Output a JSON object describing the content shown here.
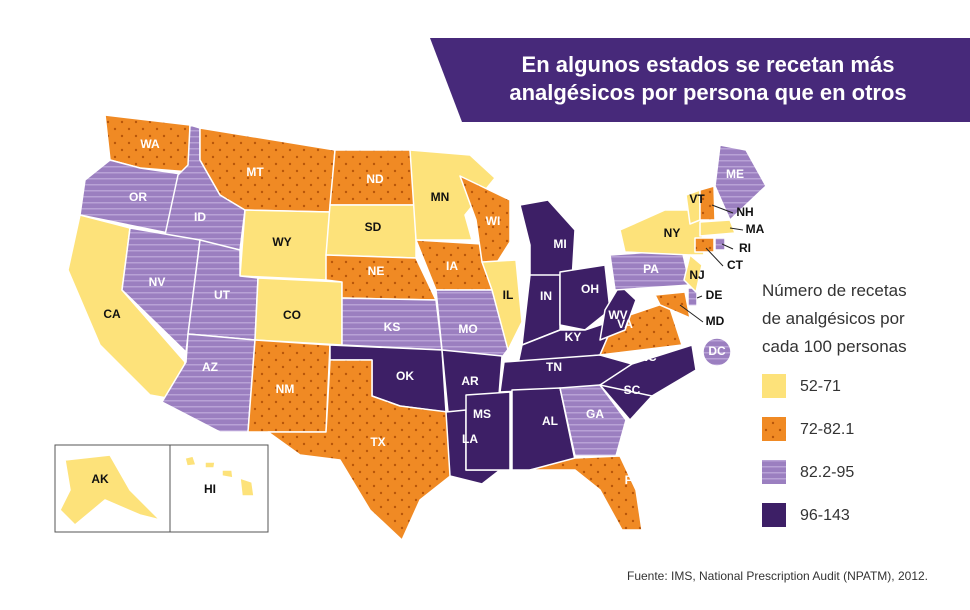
{
  "title_lines": [
    "En algunos estados se recetan más",
    "analgésicos por persona que en otros"
  ],
  "legend": {
    "title_lines": [
      "Número de recetas",
      "de analgésicos por",
      "cada 100 personas"
    ],
    "items": [
      {
        "label": "52-71",
        "color": "#fde27a",
        "pattern": "none"
      },
      {
        "label": "72-82.1",
        "color": "#f08a24",
        "pattern": "dots"
      },
      {
        "label": "82.2-95",
        "color": "#9b7fc0",
        "pattern": "stripes"
      },
      {
        "label": "96-143",
        "color": "#3d1f66",
        "pattern": "none"
      }
    ]
  },
  "states": [
    {
      "label": "WA",
      "color": "#f08a24"
    },
    {
      "label": "OR",
      "color": "#9b7fc0"
    },
    {
      "label": "CA",
      "color": "#fde27a"
    },
    {
      "label": "ID",
      "color": "#9b7fc0"
    },
    {
      "label": "NV",
      "color": "#9b7fc0"
    },
    {
      "label": "MT",
      "color": "#f08a24"
    },
    {
      "label": "WY",
      "color": "#fde27a"
    },
    {
      "label": "UT",
      "color": "#9b7fc0"
    },
    {
      "label": "AZ",
      "color": "#9b7fc0"
    },
    {
      "label": "CO",
      "color": "#fde27a"
    },
    {
      "label": "NM",
      "color": "#f08a24"
    },
    {
      "label": "ND",
      "color": "#f08a24"
    },
    {
      "label": "SD",
      "color": "#fde27a"
    },
    {
      "label": "NE",
      "color": "#f08a24"
    },
    {
      "label": "KS",
      "color": "#9b7fc0"
    },
    {
      "label": "OK",
      "color": "#3d1f66"
    },
    {
      "label": "TX",
      "color": "#f08a24"
    },
    {
      "label": "MN",
      "color": "#fde27a"
    },
    {
      "label": "IA",
      "color": "#f08a24"
    },
    {
      "label": "MO",
      "color": "#9b7fc0"
    },
    {
      "label": "AR",
      "color": "#3d1f66"
    },
    {
      "label": "LA",
      "color": "#3d1f66"
    },
    {
      "label": "WI",
      "color": "#f08a24"
    },
    {
      "label": "IL",
      "color": "#fde27a"
    },
    {
      "label": "MI",
      "color": "#3d1f66"
    },
    {
      "label": "IN",
      "color": "#3d1f66"
    },
    {
      "label": "OH",
      "color": "#3d1f66"
    },
    {
      "label": "KY",
      "color": "#3d1f66"
    },
    {
      "label": "TN",
      "color": "#3d1f66"
    },
    {
      "label": "MS",
      "color": "#3d1f66"
    },
    {
      "label": "AL",
      "color": "#3d1f66"
    },
    {
      "label": "GA",
      "color": "#9b7fc0"
    },
    {
      "label": "FL",
      "color": "#f08a24"
    },
    {
      "label": "SC",
      "color": "#3d1f66"
    },
    {
      "label": "NC",
      "color": "#3d1f66"
    },
    {
      "label": "VA",
      "color": "#f08a24"
    },
    {
      "label": "WV",
      "color": "#3d1f66"
    },
    {
      "label": "MD",
      "color": "#f08a24"
    },
    {
      "label": "DE",
      "color": "#9b7fc0"
    },
    {
      "label": "PA",
      "color": "#9b7fc0"
    },
    {
      "label": "NY",
      "color": "#fde27a"
    },
    {
      "label": "NJ",
      "color": "#fde27a"
    },
    {
      "label": "VT",
      "color": "#fde27a"
    },
    {
      "label": "NH",
      "color": "#f08a24"
    },
    {
      "label": "ME",
      "color": "#9b7fc0"
    },
    {
      "label": "MA",
      "color": "#fde27a"
    },
    {
      "label": "CT",
      "color": "#f08a24"
    },
    {
      "label": "RI",
      "color": "#9b7fc0"
    },
    {
      "label": "DC",
      "color": "#9b7fc0"
    },
    {
      "label": "AK",
      "color": "#fde27a"
    },
    {
      "label": "HI",
      "color": "#fde27a"
    }
  ],
  "source": "Fuente: IMS, National Prescription Audit (NPATM), 2012."
}
